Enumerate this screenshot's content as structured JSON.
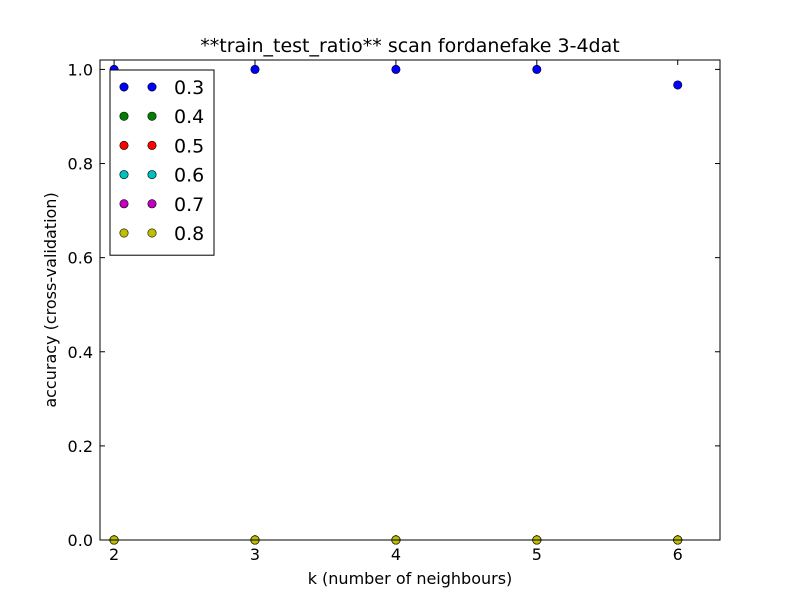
{
  "chart_data": {
    "type": "scatter",
    "title": "**train_test_ratio** scan fordanefake 3-4dat",
    "xlabel": "k (number of neighbours)",
    "ylabel": "accuracy (cross-validation)",
    "xlim": [
      1.9,
      6.3
    ],
    "ylim": [
      0.0,
      1.02
    ],
    "xticks": [
      2,
      3,
      4,
      5,
      6
    ],
    "xtick_labels": [
      "2",
      "3",
      "4",
      "5",
      "6"
    ],
    "yticks": [
      0.0,
      0.2,
      0.4,
      0.6,
      0.8,
      1.0
    ],
    "ytick_labels": [
      "0.0",
      "0.2",
      "0.4",
      "0.6",
      "0.8",
      "1.0"
    ],
    "x": [
      2,
      3,
      4,
      5,
      6
    ],
    "series": [
      {
        "name": "0.3",
        "color": "#0000ff",
        "values": [
          1.0,
          1.0,
          1.0,
          1.0,
          0.967
        ]
      },
      {
        "name": "0.4",
        "color": "#008000",
        "values": [
          0.0,
          0.0,
          0.0,
          0.0,
          0.0
        ]
      },
      {
        "name": "0.5",
        "color": "#ff0000",
        "values": [
          0.0,
          0.0,
          0.0,
          0.0,
          0.0
        ]
      },
      {
        "name": "0.6",
        "color": "#00bfbf",
        "values": [
          0.0,
          0.0,
          0.0,
          0.0,
          0.0
        ]
      },
      {
        "name": "0.7",
        "color": "#bf00bf",
        "values": [
          0.0,
          0.0,
          0.0,
          0.0,
          0.0
        ]
      },
      {
        "name": "0.8",
        "color": "#bfbf00",
        "values": [
          0.0,
          0.0,
          0.0,
          0.0,
          0.0
        ]
      }
    ],
    "legend_position": "top-left",
    "grid": false
  }
}
